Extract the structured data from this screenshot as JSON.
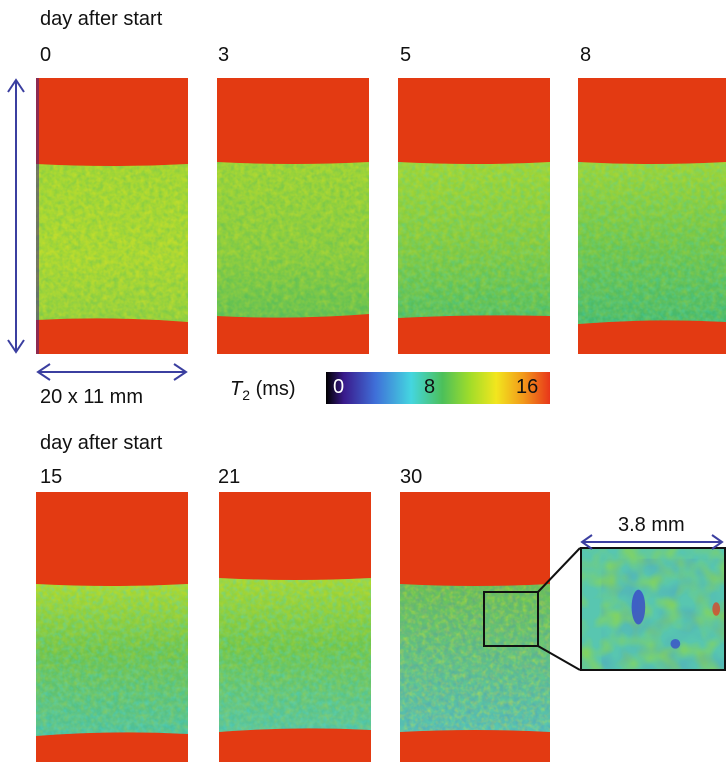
{
  "rows": [
    {
      "heading": "day after  start",
      "days": [
        "0",
        "3",
        "5",
        "8"
      ]
    },
    {
      "heading": "day after  start",
      "days": [
        "15",
        "21",
        "30"
      ]
    }
  ],
  "scale": {
    "vertical_arrow": "",
    "size_label": "20 x 11 mm",
    "zoom_label": "3.8 mm"
  },
  "colorbar": {
    "symbol": "T",
    "subscript": "2",
    "unit": " (ms)",
    "ticks": [
      "0",
      "8",
      "16"
    ],
    "colors": [
      "#000000",
      "#3a1a8c",
      "#3f6fd8",
      "#44d6e0",
      "#4cc05a",
      "#9fdc2a",
      "#f2e61e",
      "#f29a1a",
      "#e8361a"
    ]
  },
  "colors": {
    "hydrogel_red": "#e33a12",
    "sample_green": "#7ecb3a",
    "arrow_blue": "#3b3fa0"
  }
}
